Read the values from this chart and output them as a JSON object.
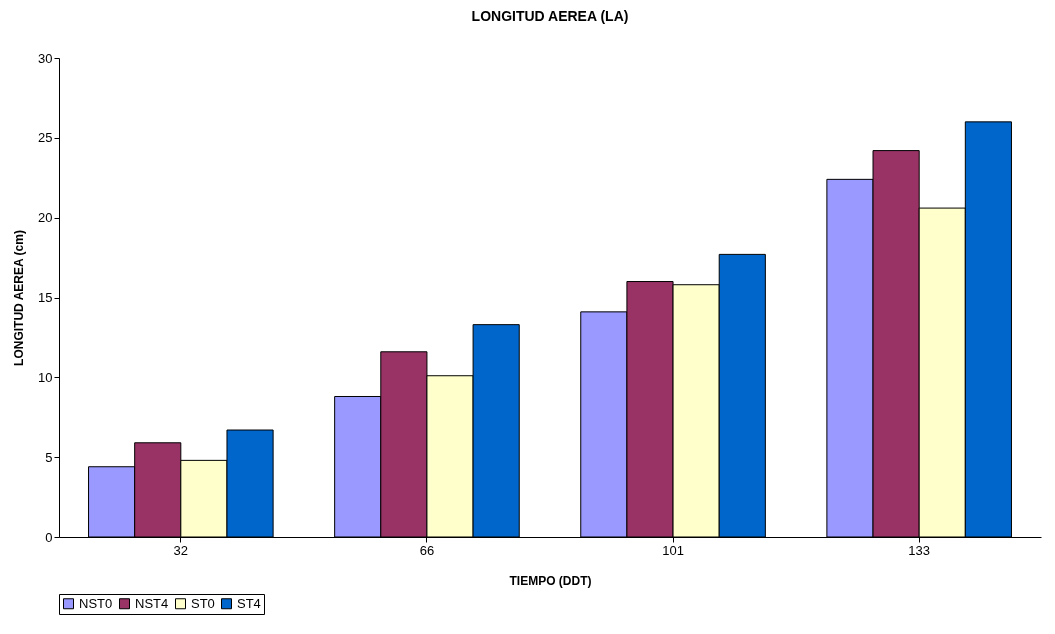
{
  "chart_data": {
    "type": "bar",
    "title": "LONGITUD AEREA (LA)",
    "xlabel": "TIEMPO (DDT)",
    "ylabel": "LONGITUD AEREA (cm)",
    "categories": [
      "32",
      "66",
      "101",
      "133"
    ],
    "series": [
      {
        "name": "NST0",
        "color": "#9999ff",
        "values": [
          4.4,
          8.8,
          14.1,
          22.4
        ]
      },
      {
        "name": "NST4",
        "color": "#993366",
        "values": [
          5.9,
          11.6,
          16.0,
          24.2
        ]
      },
      {
        "name": "ST0",
        "color": "#ffffcc",
        "values": [
          4.8,
          10.1,
          15.8,
          20.6
        ]
      },
      {
        "name": "ST4",
        "color": "#0066cc",
        "values": [
          6.7,
          13.3,
          17.7,
          26.0
        ]
      }
    ],
    "ylim": [
      0,
      30
    ],
    "yticks": [
      0,
      5,
      10,
      15,
      20,
      25,
      30
    ],
    "grid": false,
    "legend": "bottom"
  }
}
